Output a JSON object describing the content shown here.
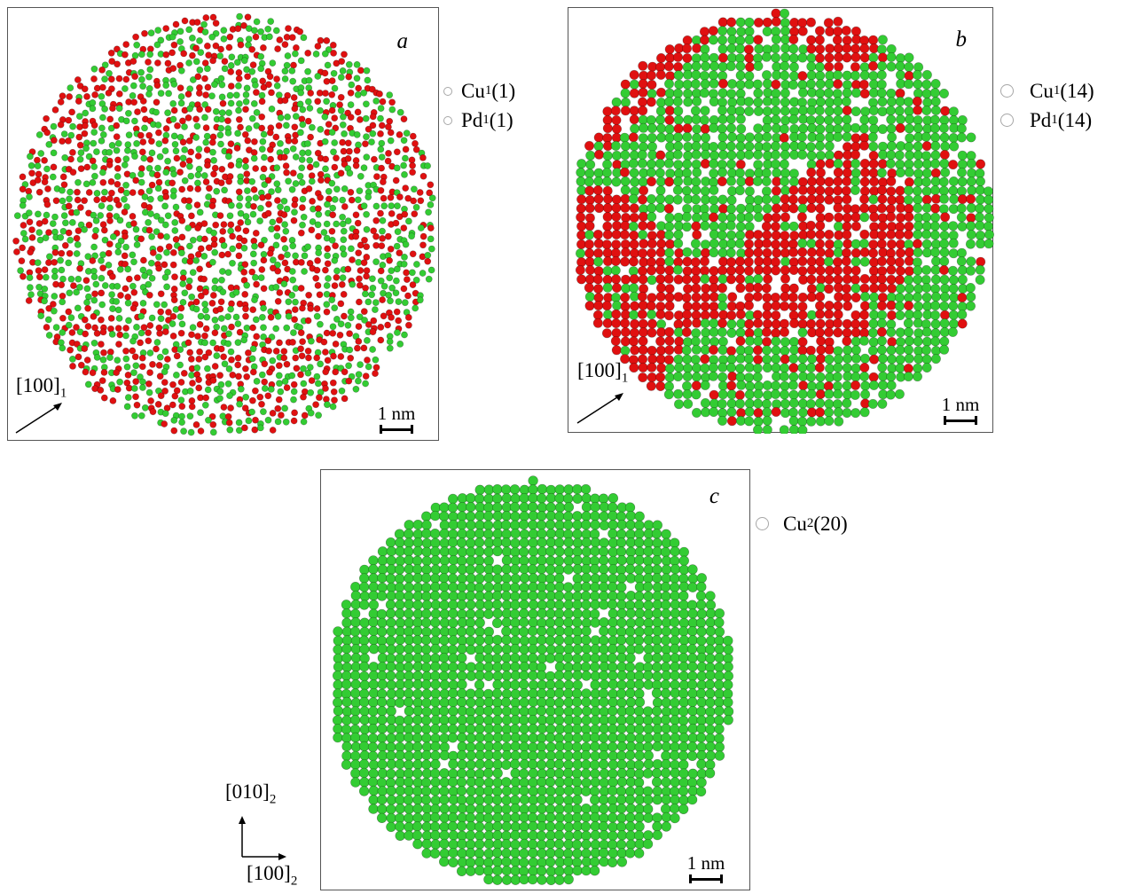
{
  "colors": {
    "cu_red": "#e01010",
    "pd_green": "#33cc33",
    "frame": "#555555"
  },
  "panels": [
    {
      "id": "a",
      "label": "a",
      "scale_bar": "1 nm",
      "direction": {
        "text": "[100]",
        "sub": "1"
      },
      "legend": [
        {
          "el": "Cu",
          "sub": "1",
          "suffix": "(1)",
          "color": "#e01010"
        },
        {
          "el": "Pd",
          "sub": "1",
          "suffix": "(1)",
          "color": "#33cc33"
        }
      ]
    },
    {
      "id": "b",
      "label": "b",
      "scale_bar": "1 nm",
      "direction": {
        "text": "[100]",
        "sub": "1"
      },
      "legend": [
        {
          "el": "Cu",
          "sub": "1",
          "suffix": "(14)",
          "color": "#e01010"
        },
        {
          "el": "Pd",
          "sub": "1",
          "suffix": "(14)",
          "color": "#33cc33"
        }
      ]
    },
    {
      "id": "c",
      "label": "c",
      "scale_bar": "1 nm",
      "direction_y": {
        "text": "[010]",
        "sub": "2"
      },
      "direction_x": {
        "text": "[100]",
        "sub": "2"
      },
      "legend": [
        {
          "el": "Cu",
          "sub": "2",
          "suffix": "(20)",
          "color": "#33cc33"
        }
      ]
    }
  ]
}
